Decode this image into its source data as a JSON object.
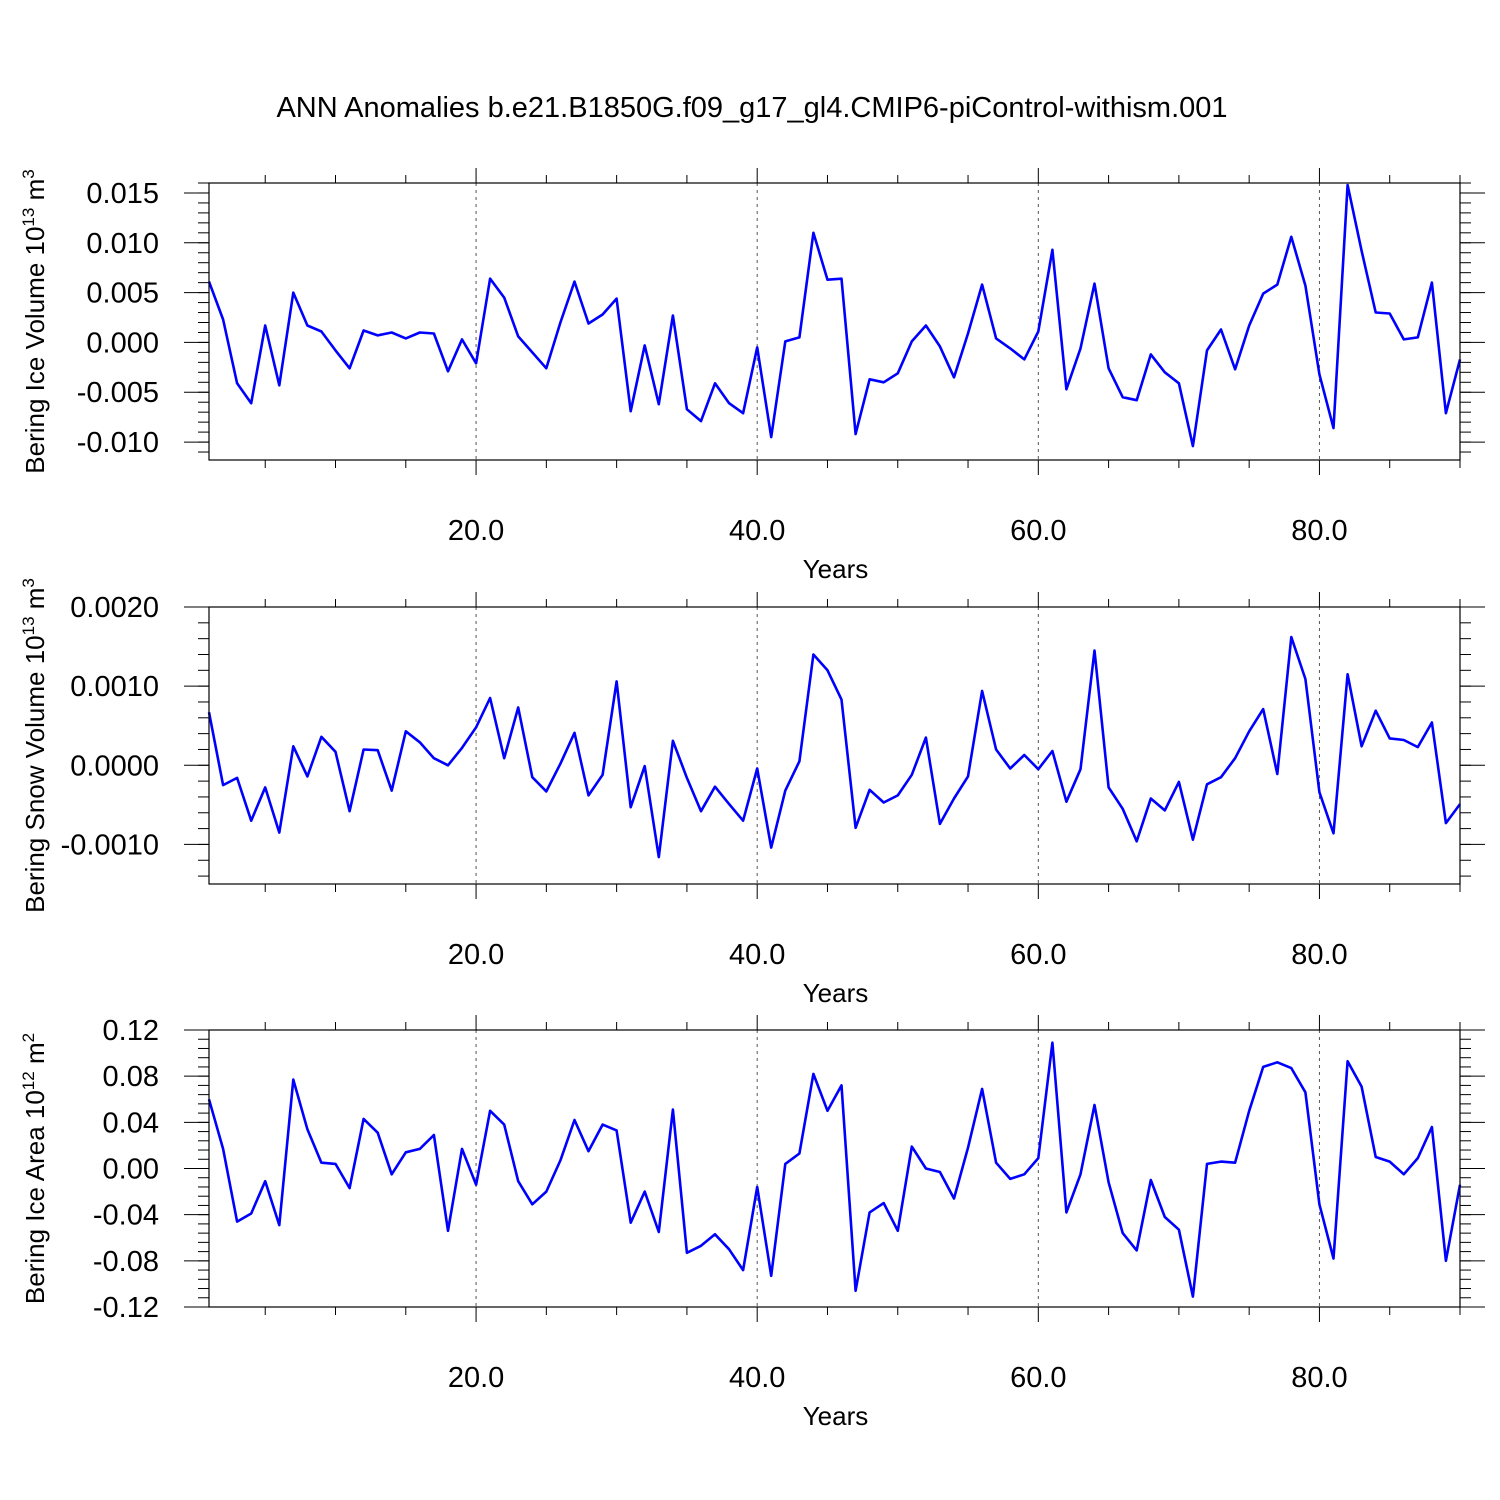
{
  "title": "ANN Anomalies b.e21.B1850G.f09_g17_gl4.CMIP6-piControl-withism.001",
  "colors": {
    "line": "#0000ff",
    "axes": "#000000",
    "grid": "#555555",
    "background": "#ffffff"
  },
  "chart_data": [
    {
      "type": "line",
      "ylabel": "Bering Ice Volume 10",
      "ylabel_sup": "13",
      "ylabel_unit": "m",
      "ylabel_unit_sup": "3",
      "xlabel": "Years",
      "xlim": [
        1,
        90
      ],
      "ylim": [
        -0.0118,
        0.016
      ],
      "x_ticks": [
        20,
        40,
        60,
        80
      ],
      "x_tick_labels": [
        "20.0",
        "40.0",
        "60.0",
        "80.0"
      ],
      "y_ticks": [
        -0.01,
        -0.005,
        0.0,
        0.005,
        0.01,
        0.015
      ],
      "y_tick_labels": [
        "-0.010",
        "-0.005",
        "0.000",
        "0.005",
        "0.010",
        "0.015"
      ],
      "y_minor_step": 0.001,
      "grid": "x-dashed",
      "series": [
        {
          "values": [
            0.0061,
            0.0023,
            -0.0041,
            -0.0061,
            0.0017,
            -0.0043,
            0.005,
            0.0017,
            0.0011,
            -0.0008,
            -0.0026,
            0.0012,
            0.0007,
            0.001,
            0.0004,
            0.001,
            0.0009,
            -0.0029,
            0.0003,
            -0.0021,
            0.0064,
            0.0045,
            0.0006,
            -0.001,
            -0.0026,
            0.002,
            0.0061,
            0.0019,
            0.0028,
            0.0044,
            -0.0069,
            -0.0003,
            -0.0062,
            0.0027,
            -0.0067,
            -0.0079,
            -0.0041,
            -0.0061,
            -0.0071,
            -0.0005,
            -0.0095,
            0.0001,
            0.0005,
            0.011,
            0.0063,
            0.0064,
            -0.0092,
            -0.0037,
            -0.004,
            -0.0031,
            0.0001,
            0.0017,
            -0.0004,
            -0.0035,
            0.0009,
            0.0058,
            0.0004,
            -0.0006,
            -0.0017,
            0.0011,
            0.0093,
            -0.0047,
            -0.0006,
            0.0059,
            -0.0026,
            -0.0055,
            -0.0058,
            -0.0012,
            -0.003,
            -0.0041,
            -0.0104,
            -0.0008,
            0.0013,
            -0.0027,
            0.0017,
            0.0049,
            0.0058,
            0.0106,
            0.0057,
            -0.0032,
            -0.0086,
            0.0158,
            0.0092,
            0.003,
            0.0029,
            0.0003,
            0.0005,
            0.006,
            -0.0071,
            -0.0017
          ]
        }
      ]
    },
    {
      "type": "line",
      "ylabel": "Bering Snow Volume 10",
      "ylabel_sup": "13",
      "ylabel_unit": "m",
      "ylabel_unit_sup": "3",
      "xlabel": "Years",
      "xlim": [
        1,
        90
      ],
      "ylim": [
        -0.0015,
        0.002
      ],
      "x_ticks": [
        20,
        40,
        60,
        80
      ],
      "x_tick_labels": [
        "20.0",
        "40.0",
        "60.0",
        "80.0"
      ],
      "y_ticks": [
        -0.001,
        0.0,
        0.001,
        0.002
      ],
      "y_tick_labels": [
        "-0.0010",
        "0.0000",
        "0.0010",
        "0.0020"
      ],
      "y_minor_step": 0.0002,
      "grid": "x-dashed",
      "series": [
        {
          "values": [
            0.00067,
            -0.00025,
            -0.00016,
            -0.0007,
            -0.00028,
            -0.00085,
            0.00024,
            -0.00014,
            0.00036,
            0.00017,
            -0.00058,
            0.0002,
            0.00019,
            -0.00032,
            0.00043,
            0.00029,
            9e-05,
            0.0,
            0.00022,
            0.00048,
            0.00085,
            9e-05,
            0.00073,
            -0.00015,
            -0.00033,
            2e-05,
            0.00041,
            -0.00038,
            -0.00012,
            0.00106,
            -0.00053,
            -1e-05,
            -0.00116,
            0.00031,
            -0.00016,
            -0.00058,
            -0.00027,
            -0.00049,
            -0.0007,
            -4e-05,
            -0.00104,
            -0.00032,
            5e-05,
            0.0014,
            0.0012,
            0.00083,
            -0.00079,
            -0.00031,
            -0.00047,
            -0.00038,
            -0.00012,
            0.00035,
            -0.00074,
            -0.00042,
            -0.00014,
            0.00094,
            0.0002,
            -4e-05,
            0.00013,
            -5e-05,
            0.00018,
            -0.00046,
            -5e-05,
            0.00145,
            -0.00028,
            -0.00055,
            -0.00096,
            -0.00042,
            -0.00057,
            -0.00021,
            -0.00094,
            -0.00024,
            -0.00015,
            9e-05,
            0.00043,
            0.00071,
            -0.00011,
            0.00162,
            0.00109,
            -0.00034,
            -0.00086,
            0.00115,
            0.00024,
            0.00069,
            0.00034,
            0.00032,
            0.00023,
            0.00054,
            -0.00073,
            -0.00049
          ]
        }
      ]
    },
    {
      "type": "line",
      "ylabel": "Bering Ice Area 10",
      "ylabel_sup": "12",
      "ylabel_unit": "m",
      "ylabel_unit_sup": "2",
      "xlabel": "Years",
      "xlim": [
        1,
        90
      ],
      "ylim": [
        -0.12,
        0.12
      ],
      "x_ticks": [
        20,
        40,
        60,
        80
      ],
      "x_tick_labels": [
        "20.0",
        "40.0",
        "60.0",
        "80.0"
      ],
      "y_ticks": [
        -0.12,
        -0.08,
        -0.04,
        0.0,
        0.04,
        0.08,
        0.12
      ],
      "y_tick_labels": [
        "-0.12",
        "-0.08",
        "-0.04",
        "0.00",
        "0.04",
        "0.08",
        "0.12"
      ],
      "y_minor_step": 0.008,
      "grid": "x-dashed",
      "series": [
        {
          "values": [
            0.06,
            0.017,
            -0.046,
            -0.039,
            -0.011,
            -0.049,
            0.077,
            0.034,
            0.005,
            0.004,
            -0.017,
            0.043,
            0.031,
            -0.005,
            0.014,
            0.017,
            0.029,
            -0.054,
            0.017,
            -0.014,
            0.05,
            0.038,
            -0.011,
            -0.031,
            -0.02,
            0.007,
            0.042,
            0.015,
            0.038,
            0.033,
            -0.047,
            -0.02,
            -0.055,
            0.051,
            -0.073,
            -0.067,
            -0.057,
            -0.07,
            -0.088,
            -0.016,
            -0.093,
            0.004,
            0.013,
            0.082,
            0.05,
            0.072,
            -0.106,
            -0.038,
            -0.03,
            -0.054,
            0.019,
            0.0,
            -0.003,
            -0.026,
            0.018,
            0.069,
            0.005,
            -0.009,
            -0.005,
            0.009,
            0.109,
            -0.038,
            -0.005,
            0.055,
            -0.012,
            -0.056,
            -0.071,
            -0.01,
            -0.042,
            -0.053,
            -0.111,
            0.004,
            0.006,
            0.005,
            0.05,
            0.088,
            0.092,
            0.087,
            0.066,
            -0.031,
            -0.078,
            0.093,
            0.071,
            0.01,
            0.006,
            -0.005,
            0.009,
            0.036,
            -0.08,
            -0.014
          ]
        }
      ]
    }
  ]
}
